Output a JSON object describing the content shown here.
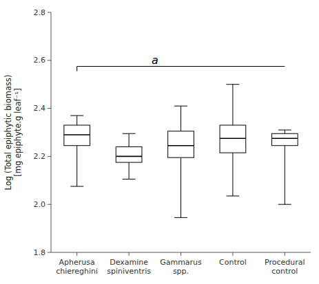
{
  "chart_data": {
    "type": "box",
    "categories": [
      "Apherusa\nchiereghini",
      "Dexamine\nspiniventris",
      "Gammarus\nspp.",
      "Control",
      "Procedural\ncontrol"
    ],
    "boxes": [
      {
        "whislo": 2.075,
        "q1": 2.245,
        "med": 2.29,
        "q3": 2.33,
        "whishi": 2.37
      },
      {
        "whislo": 2.105,
        "q1": 2.175,
        "med": 2.2,
        "q3": 2.24,
        "whishi": 2.295
      },
      {
        "whislo": 1.945,
        "q1": 2.195,
        "med": 2.245,
        "q3": 2.305,
        "whishi": 2.41
      },
      {
        "whislo": 2.035,
        "q1": 2.215,
        "med": 2.275,
        "q3": 2.33,
        "whishi": 2.5
      },
      {
        "whislo": 2.0,
        "q1": 2.245,
        "med": 2.275,
        "q3": 2.295,
        "whishi": 2.31
      }
    ],
    "ylim": [
      1.8,
      2.8
    ],
    "yticks": [
      1.8,
      {
        "value": 2.0,
        "label": "2.0"
      },
      2.2,
      2.4,
      2.6,
      2.8
    ],
    "ylabel": "Log (Total epiphytic biomass)\n[mg epiphyte.g leaf⁻¹]",
    "significance": {
      "y": 2.575,
      "label": "a"
    },
    "color": "#000000",
    "grid": false
  }
}
